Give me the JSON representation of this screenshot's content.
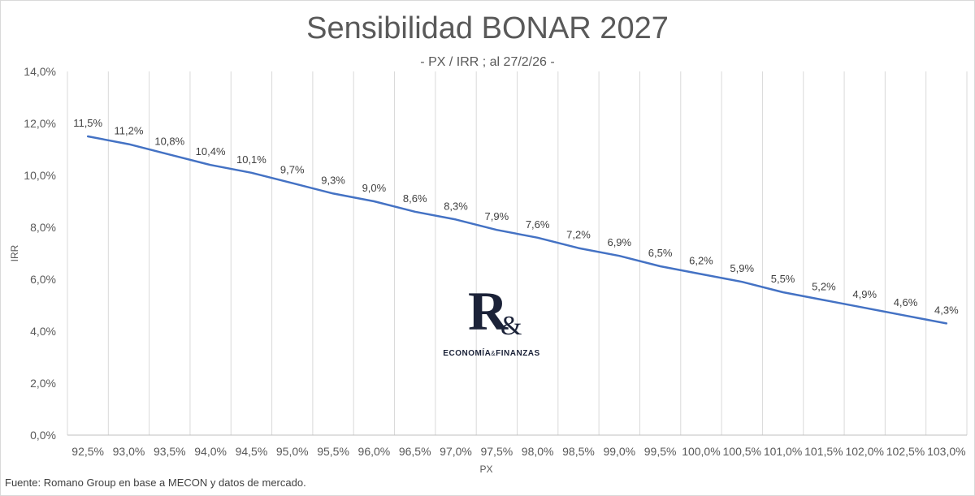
{
  "chart_data": {
    "type": "line",
    "title": "Sensibilidad BONAR 2027",
    "subtitle": "- PX / IRR ; al 27/2/26 -",
    "xlabel": "PX",
    "ylabel": "IRR",
    "categories": [
      "92,5%",
      "93,0%",
      "93,5%",
      "94,0%",
      "94,5%",
      "95,0%",
      "95,5%",
      "96,0%",
      "96,5%",
      "97,0%",
      "97,5%",
      "98,0%",
      "98,5%",
      "99,0%",
      "99,5%",
      "100,0%",
      "100,5%",
      "101,0%",
      "101,5%",
      "102,0%",
      "102,5%",
      "103,0%"
    ],
    "values": [
      11.5,
      11.2,
      10.8,
      10.4,
      10.1,
      9.7,
      9.3,
      9.0,
      8.6,
      8.3,
      7.9,
      7.6,
      7.2,
      6.9,
      6.5,
      6.2,
      5.9,
      5.5,
      5.2,
      4.9,
      4.6,
      4.3
    ],
    "data_labels": [
      "11,5%",
      "11,2%",
      "10,8%",
      "10,4%",
      "10,1%",
      "9,7%",
      "9,3%",
      "9,0%",
      "8,6%",
      "8,3%",
      "7,9%",
      "7,6%",
      "7,2%",
      "6,9%",
      "6,5%",
      "6,2%",
      "5,9%",
      "5,5%",
      "5,2%",
      "4,9%",
      "4,6%",
      "4,3%"
    ],
    "ylim": [
      0,
      14
    ],
    "yticks": [
      0,
      2,
      4,
      6,
      8,
      10,
      12,
      14
    ],
    "ytick_labels": [
      "0,0%",
      "2,0%",
      "4,0%",
      "6,0%",
      "8,0%",
      "10,0%",
      "12,0%",
      "14,0%"
    ],
    "grid": "vertical",
    "line_color": "#4472c4",
    "grid_color": "#d9d9d9"
  },
  "logo": {
    "mark": "R",
    "amp": "&",
    "text_left": "ECONOMÍA",
    "text_amp": "&",
    "text_right": "FINANZAS"
  },
  "footnote": "Fuente: Romano Group en base a MECON y datos de mercado."
}
